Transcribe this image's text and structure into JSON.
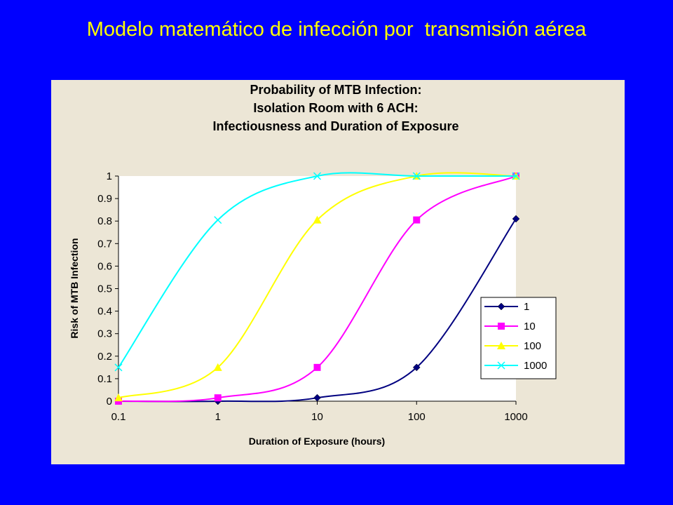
{
  "slide": {
    "title": "Modelo matemático de infección por  transmisión aérea"
  },
  "colors": {
    "background": "#0000ff",
    "title": "#ffff00",
    "panel": "#ece6d6",
    "plot_area": "#ffffff"
  },
  "chart_data": {
    "type": "line",
    "title_lines": [
      "Probability of MTB Infection:",
      "Isolation Room with 6 ACH:",
      "Infectiousness and Duration of Exposure"
    ],
    "xlabel": "Duration of Exposure (hours)",
    "ylabel": "Risk of MTB Infection",
    "x_scale": "log",
    "x": [
      0.1,
      1,
      10,
      100,
      1000
    ],
    "x_tick_labels": [
      "0.1",
      "1",
      "10",
      "100",
      "1000"
    ],
    "ylim": [
      0,
      1
    ],
    "y_ticks": [
      0,
      0.1,
      0.2,
      0.3,
      0.4,
      0.5,
      0.6,
      0.7,
      0.8,
      0.9,
      1
    ],
    "y_tick_labels": [
      "0",
      "0.1",
      "0.2",
      "0.3",
      "0.4",
      "0.5",
      "0.6",
      "0.7",
      "0.8",
      "0.9",
      "1"
    ],
    "grid": false,
    "legend_position": "lower-right",
    "smoothed": true,
    "series": [
      {
        "name": "1",
        "color": "#000080",
        "marker": "diamond",
        "values": [
          0.0,
          0.0,
          0.015,
          0.15,
          0.81
        ]
      },
      {
        "name": "10",
        "color": "#ff00ff",
        "marker": "square",
        "values": [
          0.0,
          0.015,
          0.15,
          0.805,
          1.0
        ]
      },
      {
        "name": "100",
        "color": "#ffff00",
        "marker": "triangle",
        "values": [
          0.015,
          0.15,
          0.805,
          1.0,
          1.0
        ]
      },
      {
        "name": "1000",
        "color": "#00ffff",
        "marker": "x",
        "values": [
          0.15,
          0.805,
          1.0,
          1.0,
          1.0
        ]
      }
    ]
  }
}
